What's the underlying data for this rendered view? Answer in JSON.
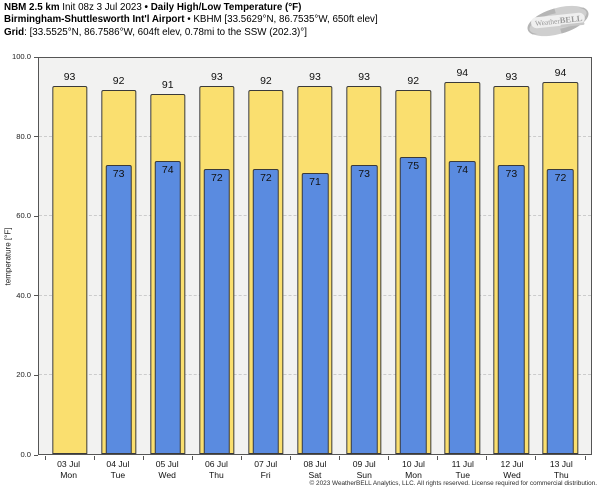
{
  "header": {
    "model": "NBM 2.5 km",
    "init": "Init 08z 3 Jul 2023",
    "sep": "•",
    "metric_title": "Daily High/Low Temperature (°F)",
    "station": "Birmingham-Shuttlesworth Int'l Airport",
    "station_detail": "KBHM [33.5629°N, 86.7535°W, 650ft elev]",
    "grid_label": "Grid",
    "grid_detail": ": [33.5525°N, 86.7586°W, 604ft elev, 0.78mi to the SSW (202.3)°]"
  },
  "logo": {
    "brand_weather": "Weather",
    "brand_bell": "BELL"
  },
  "chart_data": {
    "type": "bar",
    "title": "NBM 2.5 km Init 08z 3 Jul 2023 • Daily High/Low Temperature (°F) • Birmingham-Shuttlesworth Int'l Airport • KBHM",
    "xlabel": "",
    "ylabel": "temperature [°F]",
    "ylim": [
      0,
      100
    ],
    "yticks": [
      {
        "value": 0,
        "label": "0.0"
      },
      {
        "value": 20,
        "label": "20.0"
      },
      {
        "value": 40,
        "label": "40.0"
      },
      {
        "value": 60,
        "label": "60.0"
      },
      {
        "value": 80,
        "label": "80.0"
      },
      {
        "value": 100,
        "label": "100.0"
      }
    ],
    "gridlines": [
      20,
      40,
      60,
      80
    ],
    "grid_style": "dashed",
    "legend_position": "none",
    "categories": [
      {
        "date": "03 Jul",
        "day": "Mon"
      },
      {
        "date": "04 Jul",
        "day": "Tue"
      },
      {
        "date": "05 Jul",
        "day": "Wed"
      },
      {
        "date": "06 Jul",
        "day": "Thu"
      },
      {
        "date": "07 Jul",
        "day": "Fri"
      },
      {
        "date": "08 Jul",
        "day": "Sat"
      },
      {
        "date": "09 Jul",
        "day": "Sun"
      },
      {
        "date": "10 Jul",
        "day": "Mon"
      },
      {
        "date": "11 Jul",
        "day": "Tue"
      },
      {
        "date": "12 Jul",
        "day": "Wed"
      },
      {
        "date": "13 Jul",
        "day": "Thu"
      }
    ],
    "series": [
      {
        "name": "daily high",
        "color": "#fadf6f",
        "values": [
          93,
          92,
          91,
          93,
          92,
          93,
          93,
          92,
          94,
          93,
          94
        ]
      },
      {
        "name": "daily low",
        "color": "#5a8be0",
        "values": [
          null,
          73,
          74,
          72,
          72,
          71,
          73,
          75,
          74,
          73,
          72
        ]
      }
    ]
  },
  "footer": "© 2023 WeatherBELL Analytics, LLC. All rights reserved. License required for commercial distribution.",
  "colors": {
    "high_fill": "#fadf6f",
    "low_fill": "#5a8be0",
    "bar_border": "#3a3a3a",
    "plot_bg": "#f2f2f1",
    "grid": "#cccccc",
    "spine": "#555555",
    "logo_gray": "#c3c3c3"
  }
}
